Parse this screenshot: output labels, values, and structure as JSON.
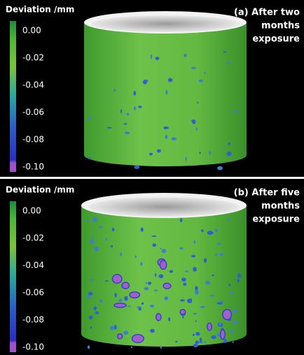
{
  "panels": [
    {
      "legend": {
        "title": "Deviation /mm",
        "ticks": [
          "0.00",
          "-0.02",
          "-0.04",
          "-0.06",
          "-0.08",
          "-0.10"
        ]
      },
      "caption": [
        "(a) After two",
        "months",
        "exposure"
      ]
    },
    {
      "legend": {
        "title": "Deviation /mm",
        "ticks": [
          "0.00",
          "-0.02",
          "-0.04",
          "-0.06",
          "-0.08",
          "-0.10"
        ]
      },
      "caption": [
        "(b) After five",
        "months",
        "exposure"
      ]
    }
  ]
}
